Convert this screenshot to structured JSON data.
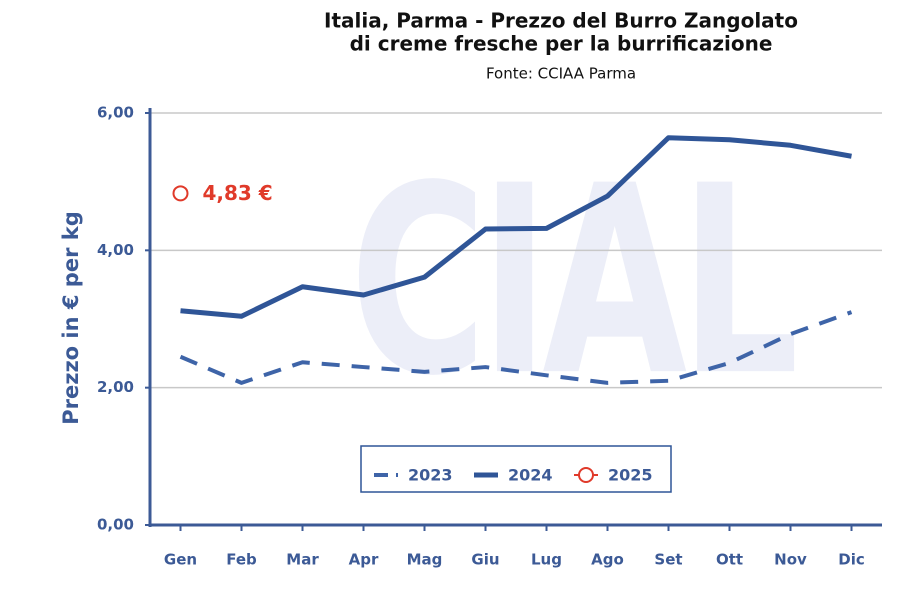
{
  "chart_data": {
    "type": "line",
    "title": [
      "Italia, Parma - Prezzo del Burro Zangolato",
      "di creme fresche per la burrificazione"
    ],
    "subtitle": "Fonte: CCIAA Parma",
    "watermark": "CIAL",
    "y_label": "Prezzo in € per kg",
    "categories": [
      "Gen",
      "Feb",
      "Mar",
      "Apr",
      "Mag",
      "Giu",
      "Lug",
      "Ago",
      "Set",
      "Ott",
      "Nov",
      "Dic"
    ],
    "series": [
      {
        "name": "2023",
        "color": "#3e64a8",
        "style": "dashed",
        "values": [
          2.45,
          2.07,
          2.37,
          2.3,
          2.23,
          2.3,
          2.18,
          2.07,
          2.1,
          2.36,
          2.78,
          3.1
        ]
      },
      {
        "name": "2024",
        "color": "#2f5597",
        "style": "solid",
        "values": [
          3.12,
          3.04,
          3.47,
          3.35,
          3.61,
          4.31,
          4.32,
          4.79,
          5.64,
          5.61,
          5.53,
          5.37
        ]
      },
      {
        "name": "2025",
        "color": "#e03a2a",
        "style": "marker",
        "values": [
          4.83,
          null,
          null,
          null,
          null,
          null,
          null,
          null,
          null,
          null,
          null,
          null
        ],
        "value_labels": [
          "4,83 €",
          null,
          null,
          null,
          null,
          null,
          null,
          null,
          null,
          null,
          null,
          null
        ]
      }
    ],
    "ylim": [
      0,
      6
    ],
    "yticks": [
      {
        "value": 0,
        "label": "0,00"
      },
      {
        "value": 2,
        "label": "2,00"
      },
      {
        "value": 4,
        "label": "4,00"
      },
      {
        "value": 6,
        "label": "6,00"
      }
    ],
    "grid": true,
    "legend": "bottom"
  }
}
